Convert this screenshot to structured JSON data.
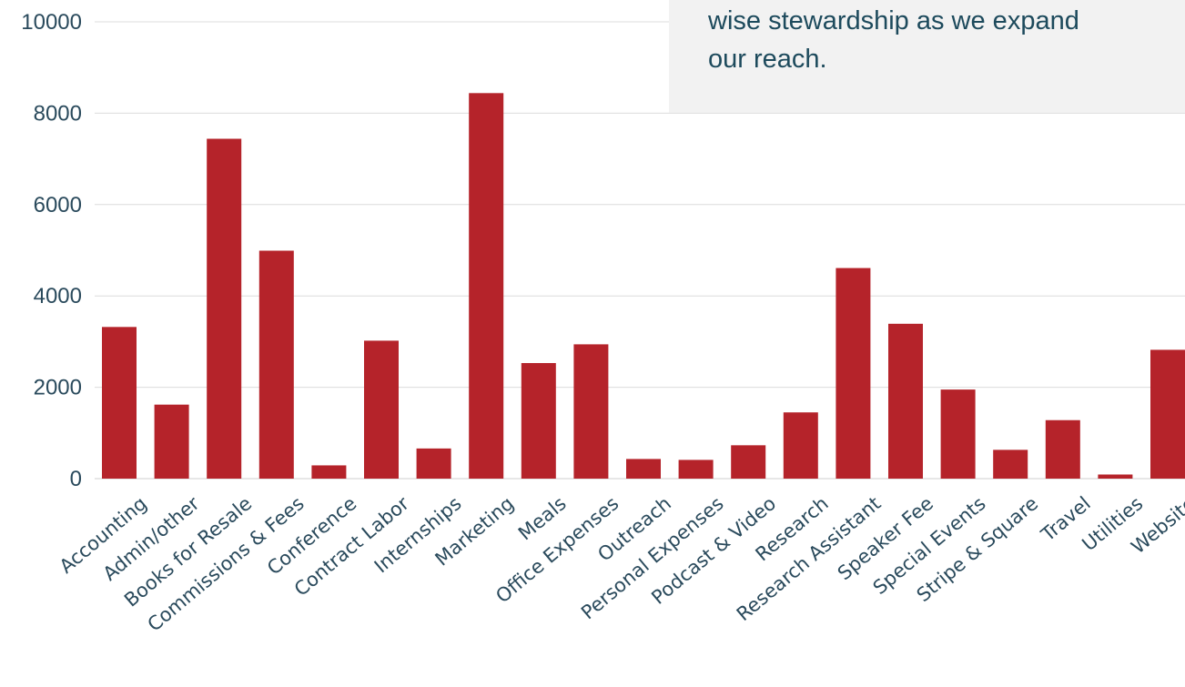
{
  "callout": {
    "lines": [
      "wise stewardship as we expand",
      "our reach."
    ]
  },
  "colors": {
    "bar": "#b5232a",
    "text": "#2a4a5c",
    "callout_bg": "#f2f2f2",
    "callout_text": "#1d4a5c"
  },
  "chart_data": {
    "type": "bar",
    "title": "",
    "xlabel": "",
    "ylabel": "",
    "ylim": [
      0,
      10000
    ],
    "yticks": [
      0,
      2000,
      4000,
      6000,
      8000,
      10000
    ],
    "ytick_labels": [
      "0",
      "2000",
      "4000",
      "6000",
      "8000",
      "10000"
    ],
    "grid": true,
    "categories": [
      "Accounting",
      "Admin/other",
      "Books for Resale",
      "Commissions & Fees",
      "Conference",
      "Contract Labor",
      "Internships",
      "Marketing",
      "Meals",
      "Office Expenses",
      "Outreach",
      "Personal Expenses",
      "Podcast & Video",
      "Research",
      "Research Assistant",
      "Speaker Fee",
      "Special Events",
      "Stripe & Square",
      "Travel",
      "Utilities",
      "Website"
    ],
    "values": [
      3320,
      1620,
      7440,
      4990,
      290,
      3020,
      660,
      8440,
      2530,
      2940,
      430,
      410,
      730,
      1450,
      4610,
      3390,
      1950,
      630,
      1280,
      90,
      2820
    ]
  }
}
